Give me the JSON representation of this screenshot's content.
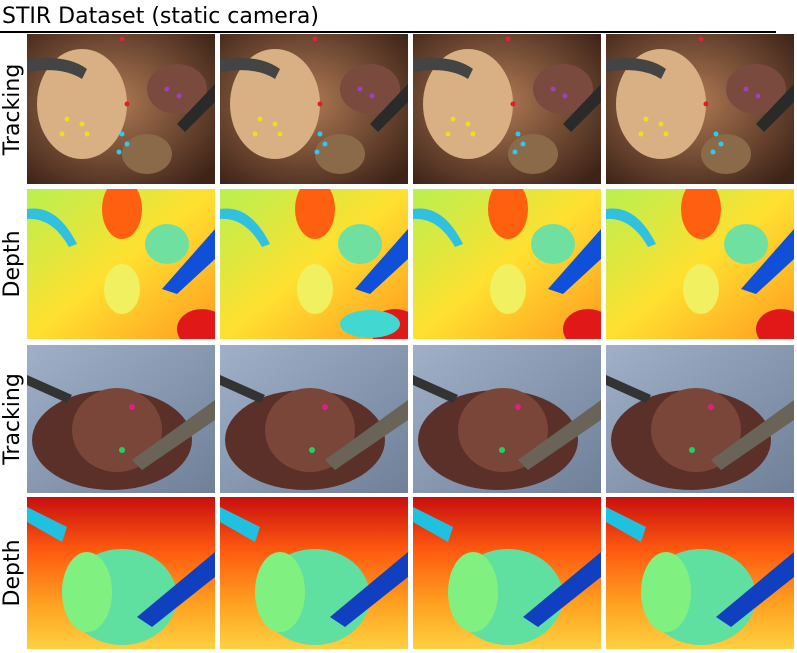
{
  "title": "STIR Dataset (static camera)",
  "rows": [
    {
      "label": "Tracking"
    },
    {
      "label": "Depth"
    },
    {
      "label": "Tracking"
    },
    {
      "label": "Depth"
    }
  ]
}
